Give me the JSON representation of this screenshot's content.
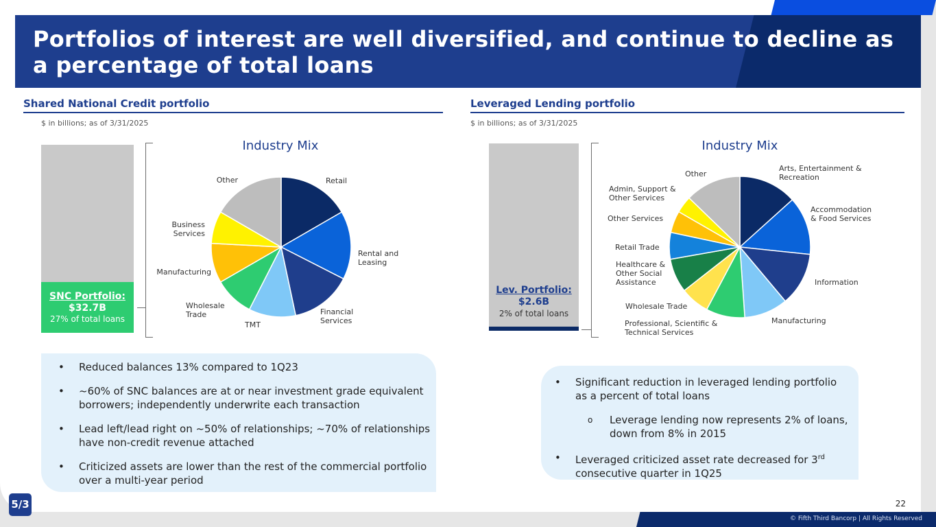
{
  "title": "Portfolios of interest are well diversified, and continue to decline as a percentage of total loans",
  "left": {
    "section_title": "Shared National Credit portfolio",
    "note": "$ in billions; as of 3/31/2025",
    "bar": {
      "label": "SNC Portfolio:",
      "value": "$32.7B",
      "sub": "27% of total loans",
      "share_pct": 27
    },
    "mix_title": "Industry Mix",
    "pie": [
      {
        "label": "Retail",
        "value": 10,
        "color": "#0b2a66"
      },
      {
        "label": "Rental and Leasing",
        "value": 9.5,
        "color": "#0a63d9"
      },
      {
        "label": "Financial Services",
        "value": 8.5,
        "color": "#1f3e8c"
      },
      {
        "label": "TMT",
        "value": 6.5,
        "color": "#7fc8f7"
      },
      {
        "label": "Wholesale Trade",
        "value": 5.5,
        "color": "#2ecc71"
      },
      {
        "label": "Manufacturing",
        "value": 5.5,
        "color": "#ffc107"
      },
      {
        "label": "Business Services",
        "value": 4.5,
        "color": "#fff200"
      },
      {
        "label": "Other",
        "value": 10,
        "color": "#bdbdbd"
      }
    ],
    "bullets": [
      "Reduced balances 13% compared to 1Q23",
      "~60% of SNC balances are at or near investment grade equivalent borrowers; independently underwrite each transaction",
      "Lead left/lead right on ~50% of relationships; ~70% of relationships have non-credit revenue attached",
      "Criticized assets are lower than the rest of the commercial portfolio over a multi-year period"
    ]
  },
  "right": {
    "section_title": "Leveraged Lending portfolio",
    "note": "$ in billions; as of 3/31/2025",
    "bar": {
      "label": "Lev. Portfolio:",
      "value": "$2.6B",
      "sub": "2% of total loans",
      "share_pct": 2
    },
    "mix_title": "Industry Mix",
    "pie": [
      {
        "label": "Arts, Entertainment & Recreation",
        "value": 12,
        "color": "#0b2a66"
      },
      {
        "label": "Accommodation & Food Services",
        "value": 12,
        "color": "#0a63d9"
      },
      {
        "label": "Information",
        "value": 11,
        "color": "#1f3e8c"
      },
      {
        "label": "Manufacturing",
        "value": 9,
        "color": "#7fc8f7"
      },
      {
        "label": "Professional, Scientific & Technical Services",
        "value": 8,
        "color": "#2ecc71"
      },
      {
        "label": "Wholesale Trade",
        "value": 6,
        "color": "#ffe24d"
      },
      {
        "label": "Healthcare & Other Social Assistance",
        "value": 7,
        "color": "#188048"
      },
      {
        "label": "Retail Trade",
        "value": 5.5,
        "color": "#1482db"
      },
      {
        "label": "Other Services",
        "value": 4.5,
        "color": "#ffc107"
      },
      {
        "label": "Admin, Support & Other Services",
        "value": 3.5,
        "color": "#fff200"
      },
      {
        "label": "Other",
        "value": 11.5,
        "color": "#bdbdbd"
      }
    ],
    "bullets": [
      {
        "text": "Significant reduction in leveraged lending portfolio as a percent of total loans",
        "level": 1
      },
      {
        "text": "Leverage lending now represents 2% of loans, down from 8% in 2015",
        "level": 2
      },
      {
        "text": "Leveraged criticized asset rate decreased for 3",
        "sup": "rd",
        "tail": " consecutive quarter in 1Q25",
        "level": 1
      }
    ]
  },
  "page_number": "22",
  "copyright": "© Fifth Third Bancorp | All Rights Reserved",
  "logo_text": "5/3"
}
